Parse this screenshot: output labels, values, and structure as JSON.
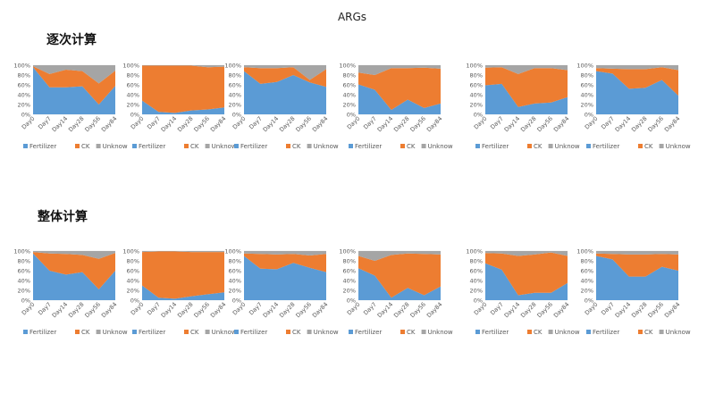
{
  "title": "ARGs",
  "sections": [
    "逐次计算",
    "整体计算"
  ],
  "colors": {
    "Fertilizer": "#5b9bd5",
    "CK": "#ed7d31",
    "Unknow": "#a5a5a5"
  },
  "chart_data": [
    {
      "type": "area",
      "stacked": true,
      "section": "逐次计算",
      "categories": [
        "Day0",
        "Day7",
        "Day14",
        "Day28",
        "Day56",
        "Day84"
      ],
      "ylim": [
        0,
        100
      ],
      "yticks": [
        "0%",
        "20%",
        "40%",
        "60%",
        "80%",
        "100%"
      ],
      "legend": "bottom",
      "series": [
        {
          "name": "Fertilizer",
          "values": [
            96,
            55,
            55,
            57,
            20,
            58
          ]
        },
        {
          "name": "CK",
          "values": [
            2,
            27,
            36,
            31,
            43,
            31
          ]
        },
        {
          "name": "Unknow",
          "values": [
            2,
            18,
            9,
            12,
            37,
            11
          ]
        }
      ]
    },
    {
      "type": "area",
      "stacked": true,
      "section": "逐次计算",
      "categories": [
        "Day0",
        "Day7",
        "Day14",
        "Day28",
        "Day56",
        "Day84"
      ],
      "ylim": [
        0,
        100
      ],
      "yticks": [
        "0%",
        "20%",
        "40%",
        "60%",
        "80%",
        "100%"
      ],
      "legend": "bottom",
      "series": [
        {
          "name": "Fertilizer",
          "values": [
            28,
            5,
            3,
            8,
            10,
            14
          ]
        },
        {
          "name": "CK",
          "values": [
            71,
            94,
            96,
            91,
            86,
            83
          ]
        },
        {
          "name": "Unknow",
          "values": [
            1,
            1,
            1,
            1,
            4,
            3
          ]
        }
      ]
    },
    {
      "type": "area",
      "stacked": true,
      "section": "逐次计算",
      "categories": [
        "Day0",
        "Day7",
        "Day14",
        "Day28",
        "Day56",
        "Day84"
      ],
      "ylim": [
        0,
        100
      ],
      "yticks": [
        "0%",
        "20%",
        "40%",
        "60%",
        "80%",
        "100%"
      ],
      "legend": "bottom",
      "series": [
        {
          "name": "Fertilizer",
          "values": [
            88,
            62,
            66,
            80,
            65,
            56
          ]
        },
        {
          "name": "CK",
          "values": [
            8,
            32,
            28,
            16,
            5,
            36
          ]
        },
        {
          "name": "Unknow",
          "values": [
            4,
            6,
            6,
            4,
            30,
            8
          ]
        }
      ]
    },
    {
      "type": "area",
      "stacked": true,
      "section": "逐次计算",
      "categories": [
        "Day0",
        "Day7",
        "Day14",
        "Day28",
        "Day56",
        "Day84"
      ],
      "ylim": [
        0,
        100
      ],
      "yticks": [
        "0%",
        "20%",
        "40%",
        "60%",
        "80%",
        "100%"
      ],
      "legend": "bottom",
      "series": [
        {
          "name": "Fertilizer",
          "values": [
            61,
            50,
            9,
            30,
            13,
            22
          ]
        },
        {
          "name": "CK",
          "values": [
            24,
            30,
            85,
            64,
            82,
            71
          ]
        },
        {
          "name": "Unknow",
          "values": [
            15,
            20,
            6,
            6,
            5,
            7
          ]
        }
      ]
    },
    {
      "type": "area",
      "stacked": true,
      "section": "逐次计算",
      "categories": [
        "Day0",
        "Day7",
        "Day14",
        "Day28",
        "Day56",
        "Day84"
      ],
      "ylim": [
        0,
        100
      ],
      "yticks": [
        "0%",
        "20%",
        "40%",
        "60%",
        "80%",
        "100%"
      ],
      "legend": "bottom",
      "series": [
        {
          "name": "Fertilizer",
          "values": [
            59,
            62,
            15,
            22,
            24,
            35
          ]
        },
        {
          "name": "CK",
          "values": [
            36,
            34,
            67,
            72,
            70,
            55
          ]
        },
        {
          "name": "Unknow",
          "values": [
            5,
            4,
            18,
            6,
            6,
            10
          ]
        }
      ]
    },
    {
      "type": "area",
      "stacked": true,
      "section": "逐次计算",
      "categories": [
        "Day0",
        "Day7",
        "Day14",
        "Day28",
        "Day56",
        "Day84"
      ],
      "ylim": [
        0,
        100
      ],
      "yticks": [
        "0%",
        "20%",
        "40%",
        "60%",
        "80%",
        "100%"
      ],
      "legend": "bottom",
      "series": [
        {
          "name": "Fertilizer",
          "values": [
            88,
            83,
            52,
            54,
            70,
            38
          ]
        },
        {
          "name": "CK",
          "values": [
            6,
            10,
            40,
            38,
            26,
            52
          ]
        },
        {
          "name": "Unknow",
          "values": [
            6,
            7,
            8,
            8,
            4,
            10
          ]
        }
      ]
    },
    {
      "type": "area",
      "stacked": true,
      "section": "整体计算",
      "categories": [
        "Day0",
        "Day7",
        "Day14",
        "Day28",
        "Day56",
        "Day84"
      ],
      "ylim": [
        0,
        100
      ],
      "yticks": [
        "0%",
        "20%",
        "40%",
        "60%",
        "80%",
        "100%"
      ],
      "legend": "bottom",
      "series": [
        {
          "name": "Fertilizer",
          "values": [
            95,
            60,
            52,
            57,
            22,
            60
          ]
        },
        {
          "name": "CK",
          "values": [
            3,
            35,
            42,
            35,
            62,
            36
          ]
        },
        {
          "name": "Unknow",
          "values": [
            2,
            5,
            6,
            8,
            16,
            4
          ]
        }
      ]
    },
    {
      "type": "area",
      "stacked": true,
      "section": "整体计算",
      "categories": [
        "Day0",
        "Day7",
        "Day14",
        "Day28",
        "Day56",
        "Day84"
      ],
      "ylim": [
        0,
        100
      ],
      "yticks": [
        "0%",
        "20%",
        "40%",
        "60%",
        "80%",
        "100%"
      ],
      "legend": "bottom",
      "series": [
        {
          "name": "Fertilizer",
          "values": [
            30,
            5,
            3,
            8,
            12,
            16
          ]
        },
        {
          "name": "CK",
          "values": [
            68,
            94,
            96,
            90,
            86,
            82
          ]
        },
        {
          "name": "Unknow",
          "values": [
            2,
            1,
            1,
            2,
            2,
            2
          ]
        }
      ]
    },
    {
      "type": "area",
      "stacked": true,
      "section": "整体计算",
      "categories": [
        "Day0",
        "Day7",
        "Day14",
        "Day28",
        "Day56",
        "Day84"
      ],
      "ylim": [
        0,
        100
      ],
      "yticks": [
        "0%",
        "20%",
        "40%",
        "60%",
        "80%",
        "100%"
      ],
      "legend": "bottom",
      "series": [
        {
          "name": "Fertilizer",
          "values": [
            90,
            64,
            63,
            76,
            66,
            57
          ]
        },
        {
          "name": "CK",
          "values": [
            5,
            30,
            30,
            18,
            25,
            37
          ]
        },
        {
          "name": "Unknow",
          "values": [
            5,
            6,
            7,
            6,
            9,
            6
          ]
        }
      ]
    },
    {
      "type": "area",
      "stacked": true,
      "section": "整体计算",
      "categories": [
        "Day0",
        "Day7",
        "Day14",
        "Day28",
        "Day56",
        "Day84"
      ],
      "ylim": [
        0,
        100
      ],
      "yticks": [
        "0%",
        "20%",
        "40%",
        "60%",
        "80%",
        "100%"
      ],
      "legend": "bottom",
      "series": [
        {
          "name": "Fertilizer",
          "values": [
            65,
            50,
            5,
            25,
            10,
            28
          ]
        },
        {
          "name": "CK",
          "values": [
            25,
            30,
            87,
            70,
            84,
            65
          ]
        },
        {
          "name": "Unknow",
          "values": [
            10,
            20,
            8,
            5,
            6,
            7
          ]
        }
      ]
    },
    {
      "type": "area",
      "stacked": true,
      "section": "整体计算",
      "categories": [
        "Day0",
        "Day7",
        "Day14",
        "Day28",
        "Day56",
        "Day84"
      ],
      "ylim": [
        0,
        100
      ],
      "yticks": [
        "0%",
        "20%",
        "40%",
        "60%",
        "80%",
        "100%"
      ],
      "legend": "bottom",
      "series": [
        {
          "name": "Fertilizer",
          "values": [
            75,
            62,
            10,
            15,
            15,
            35
          ]
        },
        {
          "name": "CK",
          "values": [
            21,
            33,
            80,
            78,
            82,
            55
          ]
        },
        {
          "name": "Unknow",
          "values": [
            4,
            5,
            10,
            7,
            3,
            10
          ]
        }
      ]
    },
    {
      "type": "area",
      "stacked": true,
      "section": "整体计算",
      "categories": [
        "Day0",
        "Day7",
        "Day14",
        "Day28",
        "Day56",
        "Day84"
      ],
      "ylim": [
        0,
        100
      ],
      "yticks": [
        "0%",
        "20%",
        "40%",
        "60%",
        "80%",
        "100%"
      ],
      "legend": "bottom",
      "series": [
        {
          "name": "Fertilizer",
          "values": [
            90,
            83,
            48,
            48,
            68,
            60
          ]
        },
        {
          "name": "CK",
          "values": [
            5,
            11,
            45,
            45,
            26,
            33
          ]
        },
        {
          "name": "Unknow",
          "values": [
            5,
            6,
            7,
            7,
            6,
            7
          ]
        }
      ]
    }
  ]
}
